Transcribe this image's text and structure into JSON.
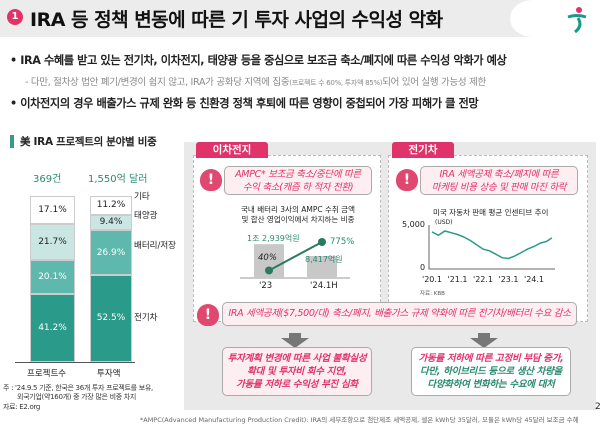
{
  "header": {
    "number": "1",
    "title": "IRA 등 정책 변동에 따른 기 투자 사업의 수익성 악화"
  },
  "bullets": [
    {
      "text": "IRA 수혜를 받고 있는 전기차, 이차전지, 태양광 등을 중심으로 보조금 축소/폐지에 따른 수익성 악화가 예상"
    },
    {
      "sub_a": "- 다만, 절차상 법안 폐기/변경이 쉽지 않고, IRA가 공화당 지역에 집중",
      "sub_small": "(프로젝트 수 60%, 투자액 85%)",
      "sub_b": "되어 있어 실행 가능성 제한"
    },
    {
      "text": "이차전지의 경우 배출가스 규제 완화 등 친환경 정책 후퇴에 따른 영향이 중첩되어 가장 피해가 클 전망"
    }
  ],
  "chart_data": [
    {
      "type": "bar",
      "title": "美 IRA 프로젝트의 분야별 비중",
      "stacked": true,
      "categories": [
        "프로젝트수",
        "투자액"
      ],
      "totals": [
        "369건",
        "1,550억 달러"
      ],
      "series": [
        {
          "name": "전기차",
          "values": [
            41.2,
            52.5
          ],
          "color": "#2a9a8a"
        },
        {
          "name": "배터리/저장",
          "values": [
            20.1,
            26.9
          ],
          "color": "#5fb8ae"
        },
        {
          "name": "태양광",
          "values": [
            21.7,
            9.4
          ],
          "color": "#c9e6e2"
        },
        {
          "name": "기타",
          "values": [
            17.1,
            11.2
          ],
          "color": "#ffffff"
        }
      ],
      "labels": [
        [
          "41.2%",
          "20.1%",
          "21.7%",
          "17.1%"
        ],
        [
          "52.5%",
          "26.9%",
          "9.4%",
          "11.2%"
        ]
      ],
      "note": "주 : '24.9.5 기준, 한국은 36개 투자 프로젝트를 보유,",
      "note2": "외국기업(약160개) 중 가장 많은 비중 차지",
      "source": "자료: E2.org"
    },
    {
      "type": "bar+line",
      "title": "국내 배터리 3사의 AMPC 수취 금액",
      "title2": "및 합산 영업이익에서 차지하는 비중",
      "categories": [
        "'23",
        "'24.1H"
      ],
      "bar_labels": [
        "1조 2,939억원",
        "8,417억원"
      ],
      "bar_values": [
        12939,
        8417
      ],
      "line_labels": [
        "40%",
        "775%"
      ],
      "line_values": [
        40,
        775
      ]
    },
    {
      "type": "line",
      "title": "미국 자동차 판매 평균 인센티브 추이",
      "unit": "(USD)",
      "ylim": [
        0,
        5000
      ],
      "yticks": [
        "5,000",
        "0"
      ],
      "xticks": [
        "'20.1",
        "'21.1",
        "'22.1",
        "'23.1",
        "'24.1"
      ],
      "source": "자료: KBB",
      "x": [
        2020.0,
        2020.25,
        2020.5,
        2020.75,
        2021.0,
        2021.25,
        2021.5,
        2021.75,
        2022.0,
        2022.25,
        2022.5,
        2022.75,
        2023.0,
        2023.25,
        2023.5,
        2023.75,
        2024.0,
        2024.25,
        2024.5,
        2024.7
      ],
      "y": [
        4200,
        3800,
        4300,
        4100,
        3900,
        3600,
        3200,
        2700,
        2200,
        2000,
        1600,
        1200,
        1100,
        1400,
        1800,
        2200,
        2500,
        2900,
        3100,
        3500
      ]
    }
  ],
  "battery": {
    "tab": "이차전지",
    "warn1": "AMPC* 보조금 축소/중단에 따른",
    "warn2": "수익 축소(캐즘 하 적자 전환)"
  },
  "ev": {
    "tab": "전기차",
    "warn1": "IRA 세액공제 축소/폐지에 따른",
    "warn2": "마케팅 비용 상승 및 판매 마진 하락"
  },
  "common_warn": "IRA 세액공제($7,500/대) 축소/폐지, 배출가스 규제 약화에 따른 전기차/배터리 수요 감소",
  "result_left": [
    "투자계획 변경에 따른 사업 불확실성",
    "확대 및 투자비 회수 지연,",
    "가동률 저하로 수익성 부진 심화"
  ],
  "result_right": [
    "가동률 저하에 따른 고정비 부담 증가,",
    "다만, 하이브리드 등으로 생산 차량을",
    "다양화하여 변화하는 수요에 대처"
  ],
  "footer": "*AMPC(Advanced Manufacturing Production Credit): IRA의 세부조항으로 첨단제조 세액공제, 셀은 kWh당 35달러, 모듈은 kWh당 45달러 보조금 수혜",
  "page": "2",
  "colors": {
    "accent": "#e0336a",
    "teal": "#2a9a8a"
  }
}
